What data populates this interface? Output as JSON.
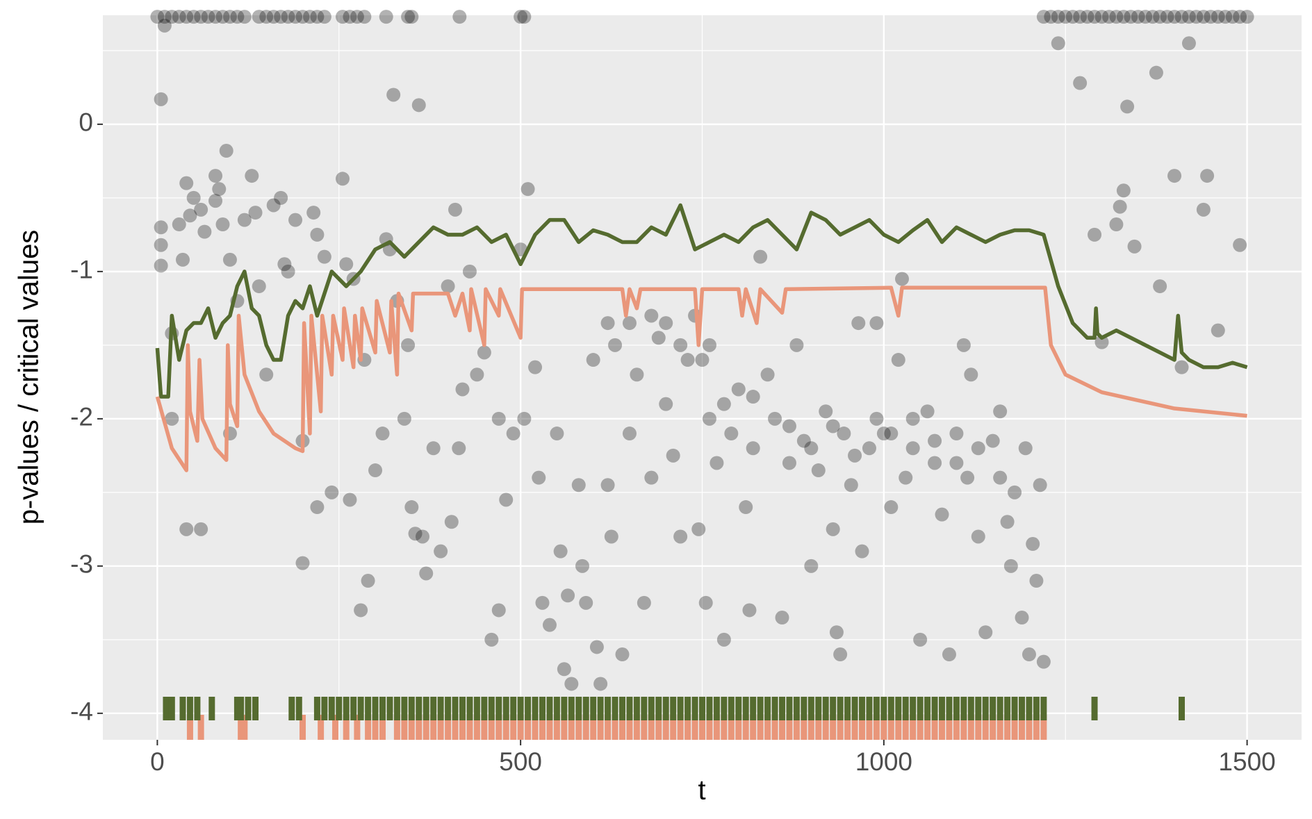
{
  "chart_data": {
    "type": "scatter",
    "xlabel": "t",
    "ylabel": "p-values / critical values",
    "xlim": [
      -75,
      1575
    ],
    "ylim": [
      -4.18,
      0.74
    ],
    "xticks": [
      0,
      500,
      1000,
      1500
    ],
    "yticks": [
      -4,
      -3,
      -2,
      -1,
      0
    ],
    "grid": true,
    "series": [
      {
        "type": "scatter",
        "color": "#000000",
        "x": [
          0,
          10,
          20,
          30,
          40,
          50,
          60,
          70,
          80,
          90,
          100,
          110,
          120,
          140,
          150,
          160,
          170,
          180,
          190,
          200,
          210,
          220,
          230,
          255,
          265,
          275,
          285,
          315,
          345,
          350,
          416,
          500,
          505,
          1220,
          1230,
          1240,
          1250,
          1260,
          1270,
          1280,
          1290,
          1300,
          1310,
          1320,
          1330,
          1340,
          1350,
          1360,
          1370,
          1380,
          1390,
          1400,
          1410,
          1420,
          1430,
          1440,
          1450,
          1460,
          1470,
          1480,
          1490,
          1500
        ],
        "values": [
          0.73,
          0.73,
          0.73,
          0.73,
          0.73,
          0.73,
          0.73,
          0.73,
          0.73,
          0.73,
          0.73,
          0.73,
          0.73,
          0.73,
          0.73,
          0.73,
          0.73,
          0.73,
          0.73,
          0.73,
          0.73,
          0.73,
          0.73,
          0.73,
          0.73,
          0.73,
          0.73,
          0.73,
          0.73,
          0.73,
          0.73,
          0.73,
          0.73,
          0.73,
          0.73,
          0.73,
          0.73,
          0.73,
          0.73,
          0.73,
          0.73,
          0.73,
          0.73,
          0.73,
          0.73,
          0.73,
          0.73,
          0.73,
          0.73,
          0.73,
          0.73,
          0.73,
          0.73,
          0.73,
          0.73,
          0.73,
          0.73,
          0.73,
          0.73,
          0.73,
          0.73,
          0.73
        ]
      },
      {
        "type": "scatter",
        "color": "#000000",
        "x": [
          5,
          10,
          5,
          5,
          5,
          20,
          20,
          30,
          35,
          40,
          45,
          50,
          60,
          65,
          40,
          60,
          80,
          85,
          80,
          95,
          90,
          100,
          100,
          110,
          120,
          130,
          135,
          140,
          150,
          160,
          170,
          175,
          180,
          190,
          200,
          215,
          220,
          230,
          200,
          220,
          240,
          255,
          260,
          265,
          270,
          280,
          285,
          290,
          300,
          310,
          315,
          320,
          325,
          330,
          340,
          345,
          350,
          355,
          360,
          365,
          370,
          380,
          390,
          400,
          405,
          410,
          415,
          420,
          430,
          440,
          450,
          460,
          470,
          480,
          490,
          470,
          500,
          505,
          510,
          520,
          525,
          530,
          540,
          550,
          555,
          560,
          565,
          570,
          580,
          585,
          590,
          600,
          605,
          610,
          620,
          625,
          630,
          640,
          650,
          660,
          670,
          680,
          690,
          700,
          710,
          720,
          730,
          740,
          745,
          750,
          755,
          760,
          770,
          780,
          790,
          800,
          810,
          815,
          820,
          830,
          840,
          850,
          860,
          870,
          880,
          890,
          900,
          910,
          920,
          930,
          935,
          940,
          945,
          955,
          965,
          970,
          980,
          990,
          1000,
          1010,
          1020,
          1025,
          1030,
          1040,
          1050,
          1060,
          1070,
          1080,
          1090,
          1100,
          1110,
          1115,
          1120,
          1130,
          1140,
          1150,
          1160,
          1170,
          1175,
          1180,
          1190,
          1195,
          1200,
          1205,
          1210,
          1215,
          1220,
          1240,
          1270,
          1290,
          1300,
          1320,
          1325,
          1330,
          1335,
          1345,
          1375,
          1380,
          1400,
          1410,
          1420,
          1440,
          1445,
          1460,
          1490,
          760,
          780,
          820,
          870,
          900,
          930,
          960,
          990,
          1010,
          1040,
          1070,
          1100,
          1130,
          1160,
          620,
          650,
          680,
          700,
          720
        ],
        "values": [
          0.17,
          0.67,
          -0.7,
          -0.82,
          -0.96,
          -1.42,
          -2.0,
          -0.68,
          -0.92,
          -0.4,
          -0.62,
          -0.5,
          -0.58,
          -0.73,
          -2.75,
          -2.75,
          -0.35,
          -0.44,
          -0.52,
          -0.18,
          -0.68,
          -0.92,
          -2.1,
          -1.2,
          -0.65,
          -0.35,
          -0.6,
          -1.1,
          -1.7,
          -0.55,
          -0.5,
          -0.95,
          -1.0,
          -0.65,
          -2.15,
          -0.6,
          -0.75,
          -0.9,
          -2.98,
          -2.6,
          -2.5,
          -0.37,
          -0.95,
          -2.55,
          -1.05,
          -3.3,
          -1.6,
          -3.1,
          -2.35,
          -2.1,
          -0.78,
          -0.85,
          0.2,
          -1.2,
          -2.0,
          -1.5,
          -2.6,
          -2.78,
          0.13,
          -2.8,
          -3.05,
          -2.2,
          -2.9,
          -1.1,
          -2.7,
          -0.58,
          -2.2,
          -1.8,
          -1.0,
          -1.7,
          -1.55,
          -3.5,
          -2.0,
          -2.55,
          -2.1,
          -3.3,
          -0.85,
          -2.0,
          -0.44,
          -1.65,
          -2.4,
          -3.25,
          -3.4,
          -2.1,
          -2.9,
          -3.7,
          -3.2,
          -3.8,
          -2.45,
          -3.0,
          -3.25,
          -1.6,
          -3.55,
          -3.8,
          -2.45,
          -2.8,
          -1.5,
          -3.6,
          -2.1,
          -1.7,
          -3.25,
          -2.4,
          -1.45,
          -1.9,
          -2.25,
          -2.8,
          -1.6,
          -1.3,
          -2.75,
          -1.6,
          -3.25,
          -2.0,
          -2.3,
          -3.5,
          -2.1,
          -1.8,
          -2.6,
          -3.3,
          -2.2,
          -0.9,
          -1.7,
          -2.0,
          -3.35,
          -2.3,
          -1.5,
          -2.15,
          -3.0,
          -2.35,
          -1.95,
          -2.75,
          -3.45,
          -3.6,
          -2.1,
          -2.45,
          -1.35,
          -2.9,
          -2.2,
          -1.35,
          -2.1,
          -2.6,
          -1.6,
          -1.05,
          -2.4,
          -2.2,
          -3.5,
          -1.95,
          -2.3,
          -2.65,
          -3.6,
          -2.1,
          -1.5,
          -2.4,
          -1.7,
          -2.8,
          -3.45,
          -2.15,
          -1.95,
          -2.7,
          -3.0,
          -2.5,
          -3.35,
          -2.2,
          -3.6,
          -2.85,
          -3.1,
          -2.45,
          -3.65,
          0.55,
          0.28,
          -0.75,
          -1.48,
          -0.68,
          -0.56,
          -0.45,
          0.12,
          -0.83,
          0.35,
          -1.1,
          -0.35,
          -1.65,
          0.55,
          -0.58,
          -0.35,
          -1.4,
          -0.82,
          -1.5,
          -1.9,
          -1.85,
          -2.05,
          -2.2,
          -2.05,
          -2.25,
          -2.0,
          -2.1,
          -2.0,
          -2.15,
          -2.3,
          -2.2,
          -2.4,
          -1.35,
          -1.35,
          -1.3,
          -1.35,
          -1.5
        ]
      },
      {
        "type": "line",
        "color": "#556b2f",
        "x": [
          0,
          5,
          15,
          20,
          30,
          40,
          50,
          60,
          70,
          80,
          90,
          100,
          110,
          120,
          130,
          140,
          150,
          160,
          170,
          180,
          190,
          200,
          210,
          220,
          240,
          260,
          280,
          300,
          320,
          340,
          360,
          380,
          400,
          420,
          440,
          460,
          480,
          500,
          520,
          540,
          560,
          580,
          600,
          620,
          640,
          660,
          680,
          700,
          720,
          740,
          760,
          780,
          800,
          820,
          840,
          860,
          880,
          900,
          920,
          940,
          960,
          980,
          1000,
          1020,
          1040,
          1060,
          1080,
          1100,
          1120,
          1140,
          1160,
          1180,
          1200,
          1220,
          1240,
          1260,
          1280,
          1290,
          1292,
          1294,
          1300,
          1320,
          1340,
          1360,
          1380,
          1400,
          1405,
          1410,
          1420,
          1440,
          1460,
          1480,
          1500
        ],
        "values": [
          -1.52,
          -1.85,
          -1.85,
          -1.3,
          -1.6,
          -1.4,
          -1.35,
          -1.35,
          -1.25,
          -1.45,
          -1.35,
          -1.3,
          -1.1,
          -1.0,
          -1.25,
          -1.3,
          -1.5,
          -1.6,
          -1.6,
          -1.3,
          -1.2,
          -1.25,
          -1.1,
          -1.3,
          -1.0,
          -1.1,
          -1.0,
          -0.85,
          -0.8,
          -0.9,
          -0.8,
          -0.7,
          -0.75,
          -0.75,
          -0.7,
          -0.8,
          -0.75,
          -0.95,
          -0.75,
          -0.65,
          -0.65,
          -0.8,
          -0.72,
          -0.75,
          -0.8,
          -0.8,
          -0.7,
          -0.75,
          -0.55,
          -0.85,
          -0.8,
          -0.75,
          -0.8,
          -0.7,
          -0.65,
          -0.75,
          -0.85,
          -0.6,
          -0.65,
          -0.75,
          -0.7,
          -0.65,
          -0.75,
          -0.8,
          -0.72,
          -0.65,
          -0.8,
          -0.7,
          -0.75,
          -0.8,
          -0.75,
          -0.72,
          -0.72,
          -0.75,
          -1.1,
          -1.35,
          -1.45,
          -1.45,
          -1.25,
          -1.42,
          -1.45,
          -1.4,
          -1.45,
          -1.5,
          -1.55,
          -1.6,
          -1.3,
          -1.55,
          -1.6,
          -1.65,
          -1.65,
          -1.62,
          -1.65
        ]
      },
      {
        "type": "line",
        "color": "#e9967a",
        "x": [
          0,
          20,
          40,
          42,
          45,
          55,
          58,
          62,
          80,
          95,
          97,
          100,
          110,
          112,
          120,
          140,
          160,
          190,
          200,
          202,
          210,
          212,
          225,
          227,
          240,
          242,
          255,
          257,
          270,
          272,
          280,
          282,
          300,
          302,
          320,
          322,
          330,
          332,
          350,
          352,
          400,
          410,
          420,
          430,
          432,
          450,
          452,
          470,
          472,
          500,
          502,
          520,
          640,
          645,
          650,
          660,
          665,
          740,
          745,
          750,
          800,
          805,
          810,
          825,
          830,
          860,
          865,
          1010,
          1020,
          1025,
          1222,
          1230,
          1250,
          1300,
          1400,
          1500
        ],
        "values": [
          -1.85,
          -2.2,
          -2.35,
          -1.5,
          -1.95,
          -2.15,
          -1.6,
          -2.0,
          -2.2,
          -2.28,
          -1.5,
          -1.9,
          -2.05,
          -1.3,
          -1.7,
          -1.95,
          -2.1,
          -2.2,
          -2.22,
          -1.35,
          -2.1,
          -1.3,
          -1.95,
          -1.3,
          -1.7,
          -1.3,
          -1.6,
          -1.25,
          -1.65,
          -1.3,
          -1.6,
          -1.25,
          -1.55,
          -1.2,
          -1.55,
          -1.2,
          -1.7,
          -1.15,
          -1.4,
          -1.15,
          -1.15,
          -1.3,
          -1.15,
          -1.4,
          -1.12,
          -1.5,
          -1.12,
          -1.3,
          -1.12,
          -1.45,
          -1.12,
          -1.12,
          -1.12,
          -1.3,
          -1.12,
          -1.25,
          -1.12,
          -1.12,
          -1.5,
          -1.12,
          -1.12,
          -1.3,
          -1.12,
          -1.35,
          -1.12,
          -1.28,
          -1.12,
          -1.11,
          -1.3,
          -1.11,
          -1.11,
          -1.5,
          -1.7,
          -1.82,
          -1.93,
          -1.98
        ]
      },
      {
        "type": "rug",
        "color": "#e9967a",
        "x": [
          45,
          60,
          115,
          120,
          200,
          225,
          245,
          260,
          275,
          290,
          300,
          310,
          330,
          340,
          350,
          360,
          370,
          380,
          390,
          400,
          410,
          420,
          430,
          440,
          450,
          460,
          470,
          480,
          490,
          500,
          510,
          520,
          530,
          540,
          550,
          560,
          570,
          580,
          590,
          600,
          610,
          620,
          630,
          640,
          650,
          660,
          670,
          680,
          690,
          700,
          710,
          720,
          730,
          740,
          750,
          760,
          770,
          780,
          790,
          800,
          810,
          820,
          830,
          840,
          850,
          860,
          870,
          880,
          890,
          900,
          910,
          920,
          930,
          940,
          950,
          960,
          970,
          980,
          990,
          1000,
          1010,
          1020,
          1030,
          1040,
          1050,
          1060,
          1070,
          1080,
          1090,
          1100,
          1110,
          1120,
          1130,
          1140,
          1150,
          1160,
          1170,
          1180,
          1190,
          1200,
          1210,
          1220
        ]
      },
      {
        "type": "rug",
        "color": "#556b2f",
        "x": [
          12,
          20,
          35,
          45,
          55,
          75,
          110,
          115,
          125,
          135,
          185,
          195,
          220,
          230,
          240,
          250,
          260,
          270,
          280,
          290,
          300,
          310,
          320,
          330,
          340,
          350,
          360,
          370,
          380,
          390,
          400,
          410,
          420,
          430,
          440,
          450,
          460,
          470,
          480,
          490,
          500,
          510,
          520,
          530,
          540,
          550,
          560,
          570,
          580,
          590,
          600,
          610,
          620,
          630,
          640,
          650,
          660,
          670,
          680,
          690,
          700,
          710,
          720,
          730,
          740,
          750,
          760,
          770,
          780,
          790,
          800,
          810,
          820,
          830,
          840,
          850,
          860,
          870,
          880,
          890,
          900,
          910,
          920,
          930,
          940,
          950,
          960,
          970,
          980,
          990,
          1000,
          1010,
          1020,
          1030,
          1040,
          1050,
          1060,
          1070,
          1080,
          1090,
          1100,
          1110,
          1120,
          1130,
          1140,
          1150,
          1160,
          1170,
          1180,
          1190,
          1200,
          1210,
          1220,
          1290,
          1410
        ]
      }
    ]
  }
}
